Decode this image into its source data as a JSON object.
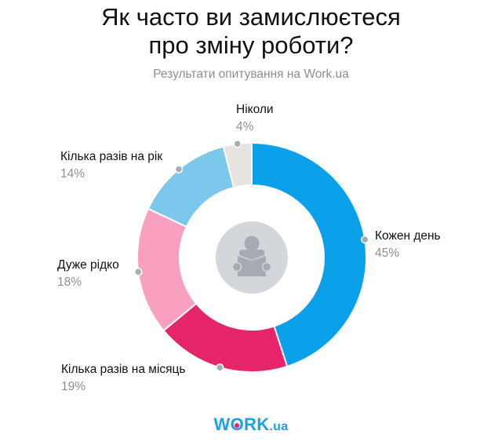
{
  "header": {
    "title_line1": "Як часто ви замислюєтеся",
    "title_line2": "про зміну роботи?",
    "subtitle": "Результати опитування на Work.ua"
  },
  "labels": {
    "every_day": {
      "name": "Кожен день",
      "pct": "45%"
    },
    "few_per_month": {
      "name": "Кілька разів на місяць",
      "pct": "19%"
    },
    "very_rarely": {
      "name": "Дуже рідко",
      "pct": "18%"
    },
    "few_per_year": {
      "name": "Кілька разів на рік",
      "pct": "14%"
    },
    "never": {
      "name": "Ніколи",
      "pct": "4%"
    }
  },
  "center_icon": "person-reading-book-icon",
  "logo": {
    "brand": "WORK",
    "brand_before_o": "W",
    "brand_o": "O",
    "brand_after_o": "RK",
    "suffix": ".ua",
    "color": "#1aa3e8",
    "accent": "#e5246a"
  },
  "chart_data": {
    "type": "pie",
    "donut": true,
    "title": "Як часто ви замислюєтеся про зміну роботи?",
    "subtitle": "Результати опитування на Work.ua",
    "categories": [
      "Кожен день",
      "Кілька разів на місяць",
      "Дуже рідко",
      "Кілька разів на рік",
      "Ніколи"
    ],
    "values": [
      45,
      19,
      18,
      14,
      4
    ],
    "colors": [
      "#0aa0ea",
      "#e5246a",
      "#f9a0c0",
      "#7cc7ec",
      "#e8e3df"
    ],
    "start_angle_deg": 0,
    "direction": "clockwise",
    "legend": "none (direct labels)"
  }
}
